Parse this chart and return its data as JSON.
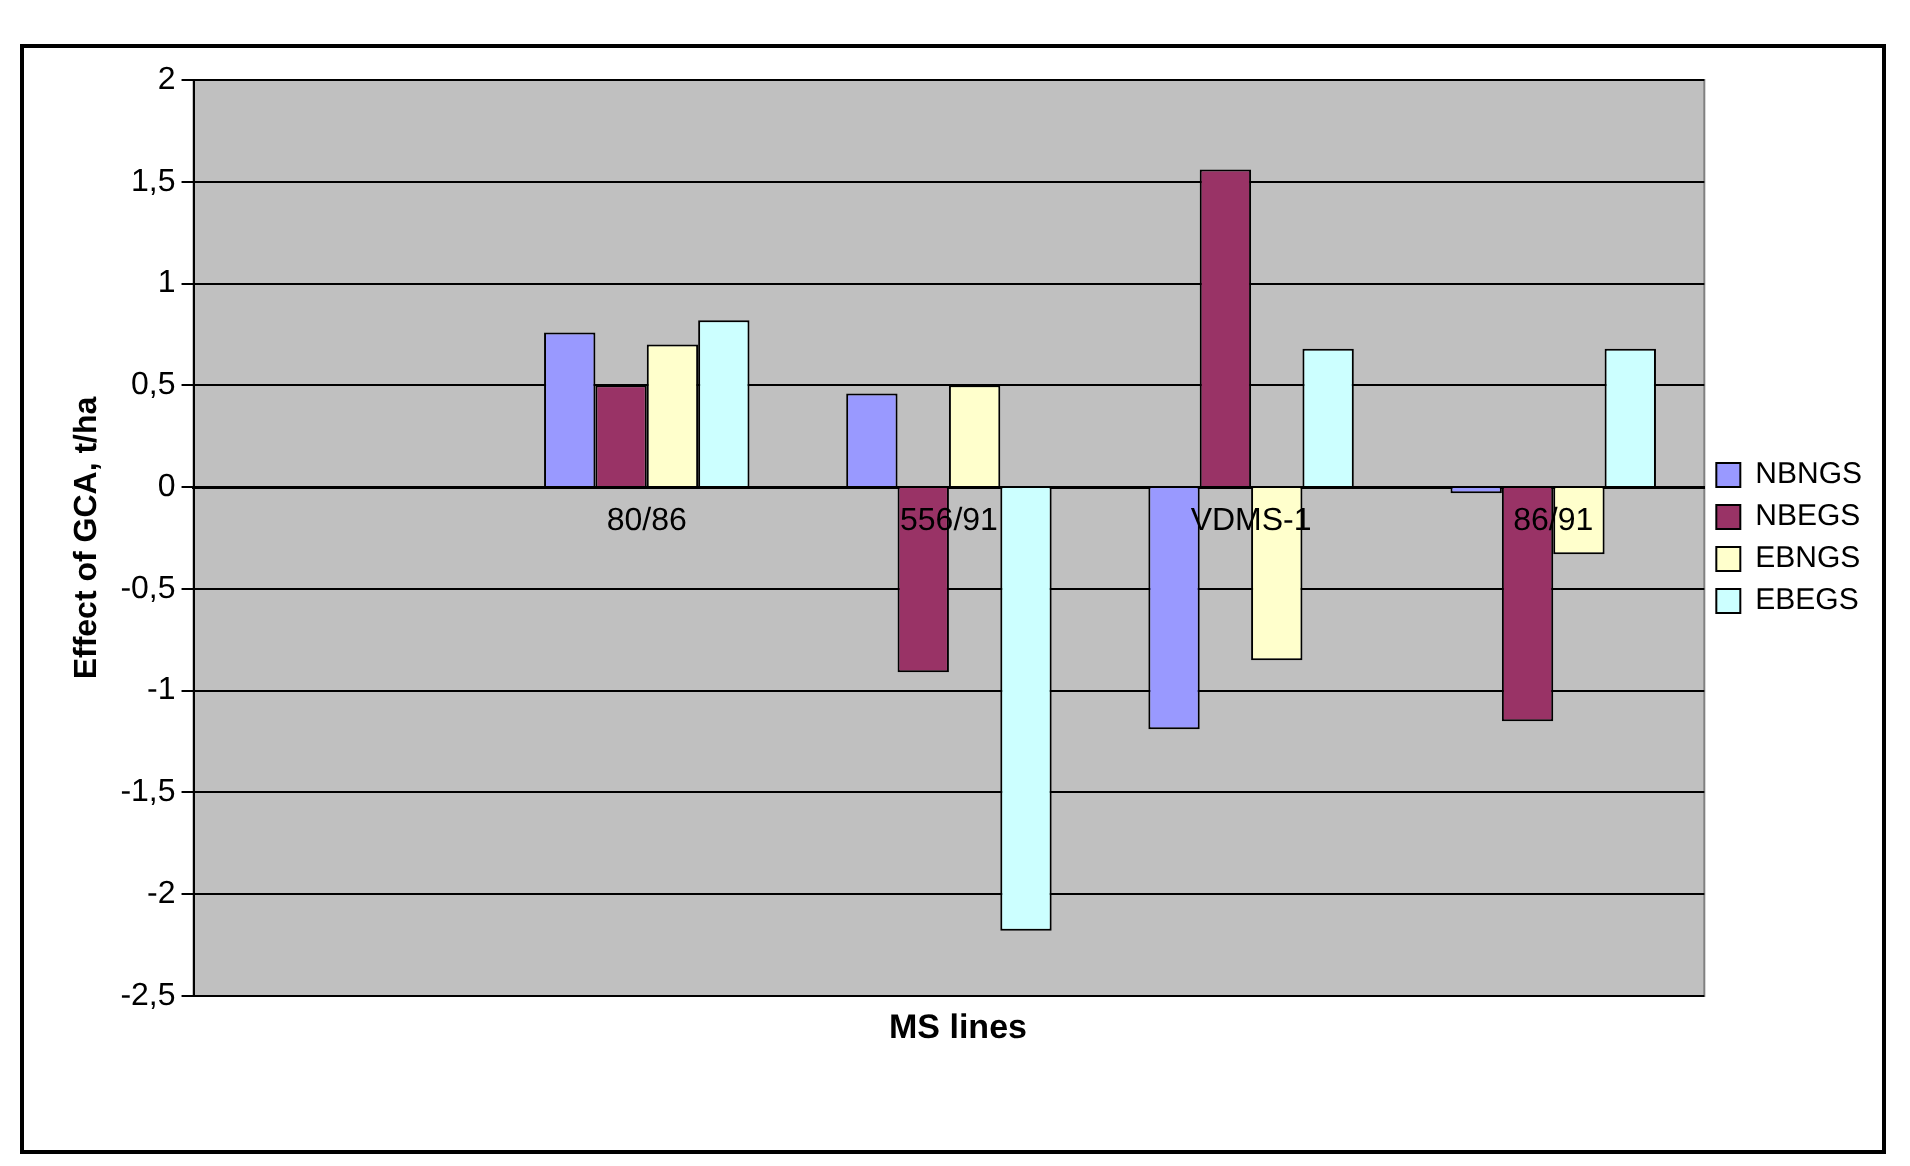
{
  "chart_data": {
    "type": "bar",
    "xlabel": "MS lines",
    "ylabel": "Effect of GCA, t/ha",
    "categories": [
      null,
      "80/86",
      "556/91",
      "VDMS-1",
      "86/91"
    ],
    "series": [
      {
        "name": "NBNGS",
        "color": "#9999ff",
        "values": [
          null,
          0.76,
          0.46,
          -1.19,
          -0.03
        ]
      },
      {
        "name": "NBEGS",
        "color": "#993366",
        "values": [
          null,
          0.5,
          -0.91,
          1.56,
          -1.15
        ]
      },
      {
        "name": "EBNGS",
        "color": "#ffffcc",
        "values": [
          null,
          0.7,
          0.5,
          -0.85,
          -0.33
        ]
      },
      {
        "name": "EBEGS",
        "color": "#ccffff",
        "values": [
          null,
          0.82,
          -2.18,
          0.68,
          0.68
        ]
      }
    ],
    "ylim": [
      -2.5,
      2
    ],
    "yticks": [
      {
        "value": -2.5,
        "label": "-2,5"
      },
      {
        "value": -2,
        "label": "-2"
      },
      {
        "value": -1.5,
        "label": "-1,5"
      },
      {
        "value": -1,
        "label": "-1"
      },
      {
        "value": -0.5,
        "label": "-0,5"
      },
      {
        "value": 0,
        "label": "0"
      },
      {
        "value": 0.5,
        "label": "0,5"
      },
      {
        "value": 1,
        "label": "1"
      },
      {
        "value": 1.5,
        "label": "1,5"
      },
      {
        "value": 2,
        "label": "2"
      }
    ],
    "grid": "y",
    "legend": "right"
  }
}
